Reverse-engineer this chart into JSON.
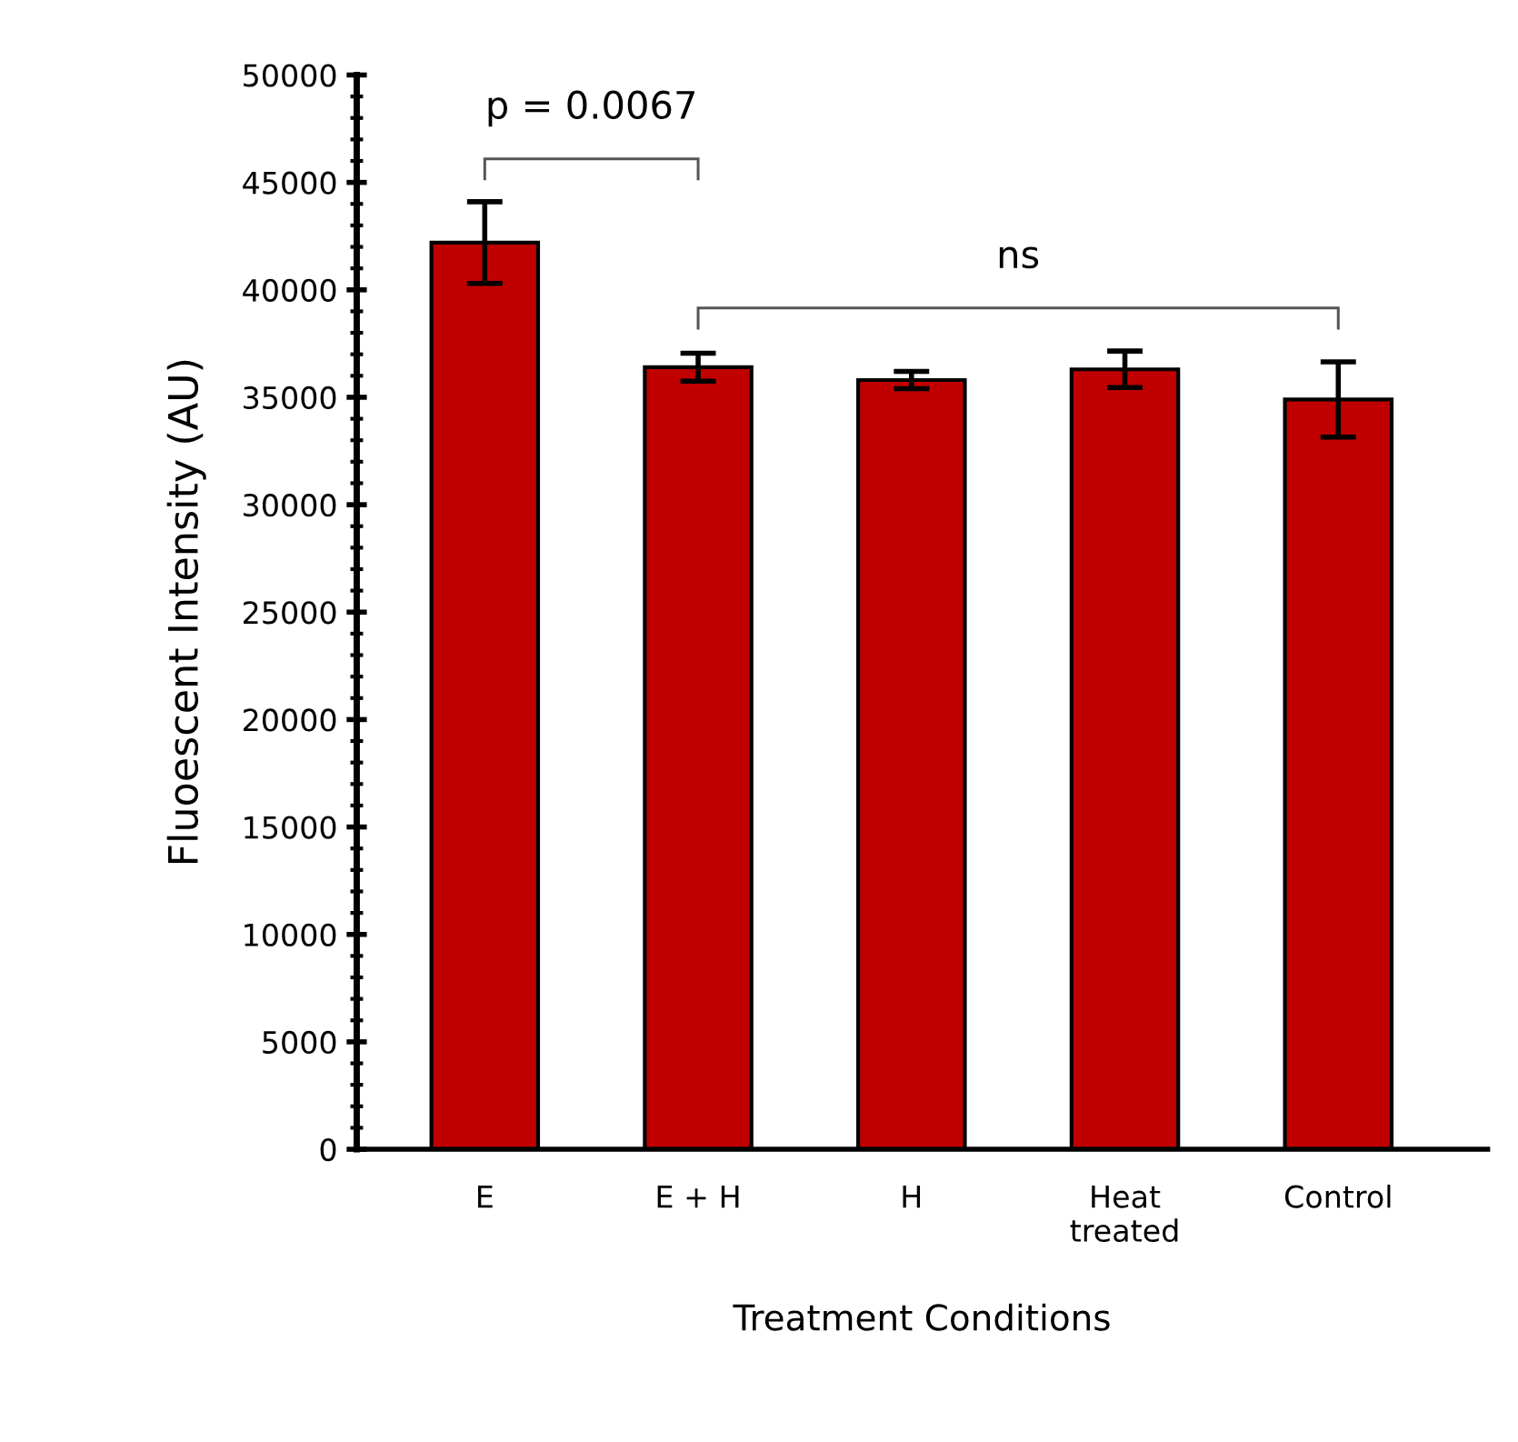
{
  "chart_data": {
    "type": "bar",
    "xlabel": "Treatment Conditions",
    "ylabel": "Fluoescent Intensity (AU)",
    "categories": [
      "E",
      "E + H",
      "H",
      "Heat\ntreated",
      "Control"
    ],
    "values": [
      42200,
      36400,
      35800,
      36300,
      34900
    ],
    "errors": [
      1900,
      650,
      400,
      850,
      1750
    ],
    "color": "#c00000",
    "ylim": [
      0,
      50000
    ],
    "yticks": [
      0,
      5000,
      10000,
      15000,
      20000,
      25000,
      30000,
      35000,
      40000,
      45000,
      50000
    ],
    "annotations": [
      "p = 0.0067",
      "ns"
    ],
    "grid": false
  }
}
